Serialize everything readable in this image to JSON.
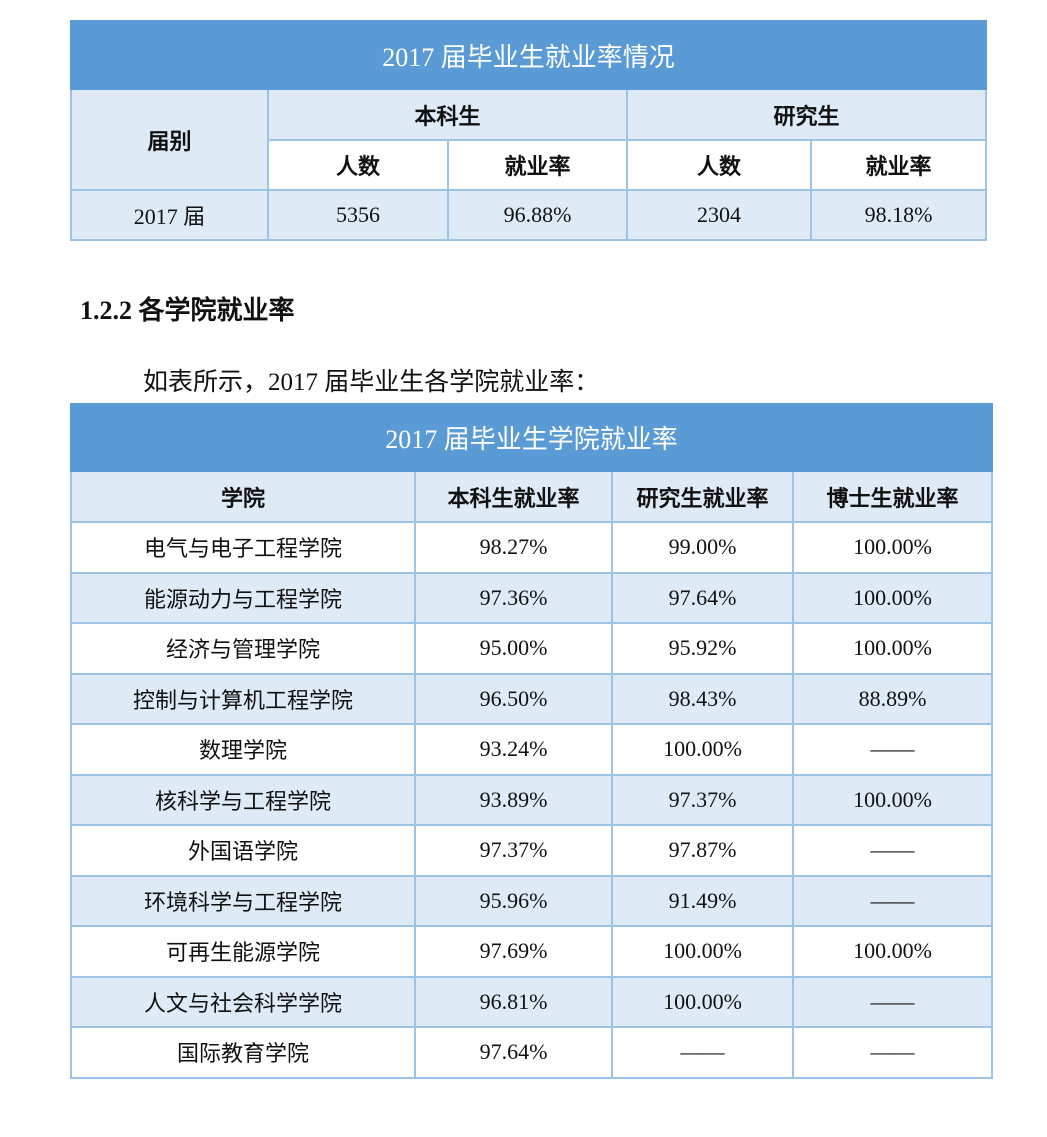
{
  "table1": {
    "title": "2017 届毕业生就业率情况",
    "row_header": "届别",
    "groups": [
      "本科生",
      "研究生"
    ],
    "subheaders": [
      "人数",
      "就业率",
      "人数",
      "就业率"
    ],
    "rows": [
      [
        "2017 届",
        "5356",
        "96.88%",
        "2304",
        "98.18%"
      ]
    ]
  },
  "section_heading": "1.2.2 各学院就业率",
  "paragraph": "如表所示，2017 届毕业生各学院就业率：",
  "table2": {
    "title": "2017 届毕业生学院就业率",
    "columns": [
      "学院",
      "本科生就业率",
      "研究生就业率",
      "博士生就业率"
    ],
    "rows": [
      [
        "电气与电子工程学院",
        "98.27%",
        "99.00%",
        "100.00%"
      ],
      [
        "能源动力与工程学院",
        "97.36%",
        "97.64%",
        "100.00%"
      ],
      [
        "经济与管理学院",
        "95.00%",
        "95.92%",
        "100.00%"
      ],
      [
        "控制与计算机工程学院",
        "96.50%",
        "98.43%",
        "88.89%"
      ],
      [
        "数理学院",
        "93.24%",
        "100.00%",
        "——"
      ],
      [
        "核科学与工程学院",
        "93.89%",
        "97.37%",
        "100.00%"
      ],
      [
        "外国语学院",
        "97.37%",
        "97.87%",
        "——"
      ],
      [
        "环境科学与工程学院",
        "95.96%",
        "91.49%",
        "——"
      ],
      [
        "可再生能源学院",
        "97.69%",
        "100.00%",
        "100.00%"
      ],
      [
        "人文与社会科学学院",
        "96.81%",
        "100.00%",
        "——"
      ],
      [
        "国际教育学院",
        "97.64%",
        "——",
        "——"
      ]
    ]
  }
}
